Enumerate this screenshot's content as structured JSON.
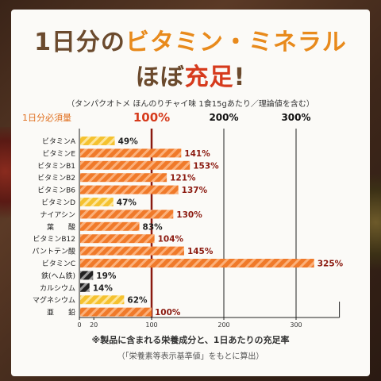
{
  "header": {
    "title_part1": "1日分の",
    "title_part2": "ビタミン・ミネラル",
    "title2_part1": "ほぼ",
    "title2_part2": "充足",
    "title2_part3": "!",
    "note": "（タンパクオトメ ほんのりチャイ味 1食15gあたり／理論値を含む）"
  },
  "footer": {
    "line1": "※製品に含まれる栄養成分と、1日あたりの充足率",
    "line2": "（「栄養素等表示基準値」をもとに算出）"
  },
  "colors": {
    "orange_bar": "#f07a2a",
    "yellow_bar": "#f5c230",
    "black_bar": "#222222",
    "red_line": "#8b1a10",
    "label_red": "#8b1a10"
  },
  "chart_data": {
    "type": "bar",
    "orientation": "horizontal",
    "categories": [
      "ビタミンA",
      "ビタミンE",
      "ビタミンB1",
      "ビタミンB2",
      "ビタミンB6",
      "ビタミンD",
      "ナイアシン",
      "葉　　酸",
      "ビタミンB12",
      "パントテン酸",
      "ビタミンC",
      "鉄(ヘム鉄)",
      "カルシウム",
      "マグネシウム",
      "亜　　鉛"
    ],
    "values": [
      49,
      141,
      153,
      121,
      137,
      47,
      130,
      83,
      104,
      145,
      325,
      19,
      14,
      62,
      100
    ],
    "value_labels": [
      "49%",
      "141%",
      "153%",
      "121%",
      "137%",
      "47%",
      "130%",
      "83%",
      "104%",
      "145%",
      "325%",
      "19%",
      "14%",
      "62%",
      "100%"
    ],
    "label_colors": [
      "dark",
      "red",
      "red",
      "red",
      "red",
      "dark",
      "red",
      "dark",
      "red",
      "red",
      "red",
      "dark",
      "dark",
      "dark",
      "red"
    ],
    "bar_styles": [
      "yellow",
      "orange",
      "orange",
      "orange",
      "orange",
      "yellow",
      "orange",
      "orange",
      "orange",
      "orange",
      "orange",
      "black",
      "black",
      "yellow",
      "orange"
    ],
    "top_labels": [
      "1日分必須量",
      "100%",
      "200%",
      "300%"
    ],
    "top_label_values": [
      null,
      100,
      200,
      300
    ],
    "x_ticks": [
      0,
      20,
      100,
      200,
      300
    ],
    "x_tick_labels": [
      "0",
      "20",
      "100",
      "200",
      "300"
    ],
    "xlim": [
      0,
      360
    ],
    "gridlines": [
      100,
      200,
      300
    ],
    "reference_line": 100
  }
}
